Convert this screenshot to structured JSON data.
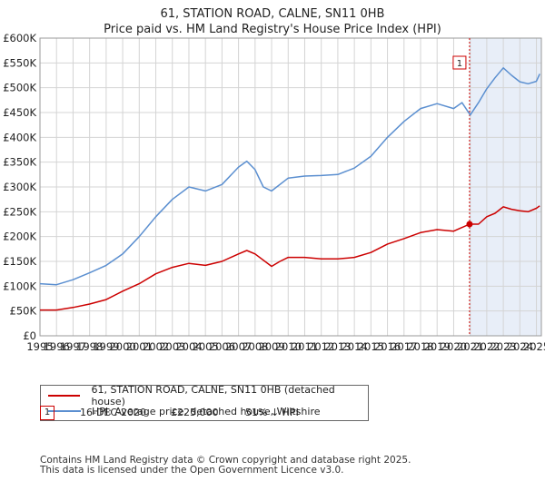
{
  "chart_data": {
    "type": "line",
    "title": "61, STATION ROAD, CALNE, SN11 0HB",
    "subtitle": "Price paid vs. HM Land Registry's House Price Index (HPI)",
    "x_ticks": [
      "1995",
      "1996",
      "1997",
      "1998",
      "1999",
      "2000",
      "2001",
      "2002",
      "2003",
      "2004",
      "2005",
      "2006",
      "2007",
      "2008",
      "2009",
      "2010",
      "2011",
      "2012",
      "2013",
      "2014",
      "2015",
      "2016",
      "2017",
      "2018",
      "2019",
      "2020",
      "2021",
      "2022",
      "2023",
      "2024",
      "2025"
    ],
    "y_ticks": [
      "£0",
      "£50K",
      "£100K",
      "£150K",
      "£200K",
      "£250K",
      "£300K",
      "£350K",
      "£400K",
      "£450K",
      "£500K",
      "£550K",
      "£600K"
    ],
    "xlim": [
      1995,
      2025.3
    ],
    "ylim": [
      0,
      600000
    ],
    "grid": true,
    "highlight_region": {
      "from": 2020.96,
      "to": 2025.3
    },
    "series": [
      {
        "name": "61, STATION ROAD, CALNE, SN11 0HB (detached house)",
        "color": "#cc0000",
        "x": [
          1995,
          1996,
          1997,
          1998,
          1999,
          2000,
          2001,
          2002,
          2003,
          2004,
          2005,
          2006,
          2007,
          2007.5,
          2008,
          2009,
          2009.5,
          2010,
          2011,
          2012,
          2013,
          2014,
          2015,
          2016,
          2017,
          2018,
          2019,
          2020,
          2020.96,
          2021.5,
          2022,
          2022.5,
          2023,
          2023.5,
          2024,
          2024.5,
          2025,
          2025.2
        ],
        "values": [
          52000,
          52000,
          57000,
          64000,
          73000,
          90000,
          105000,
          125000,
          138000,
          146000,
          142000,
          150000,
          165000,
          172000,
          165000,
          140000,
          150000,
          158000,
          158000,
          155000,
          155000,
          158000,
          168000,
          185000,
          196000,
          208000,
          214000,
          211000,
          225000,
          225000,
          240000,
          247000,
          260000,
          255000,
          252000,
          250000,
          257000,
          262000
        ]
      },
      {
        "name": "HPI: Average price, detached house, Wiltshire",
        "color": "#5b8fd0",
        "x": [
          1995,
          1996,
          1997,
          1998,
          1999,
          2000,
          2001,
          2002,
          2003,
          2004,
          2005,
          2006,
          2007,
          2007.5,
          2008,
          2008.5,
          2009,
          2010,
          2011,
          2012,
          2013,
          2014,
          2015,
          2016,
          2017,
          2018,
          2019,
          2020,
          2020.5,
          2021,
          2021.5,
          2022,
          2022.5,
          2023,
          2023.5,
          2024,
          2024.5,
          2025,
          2025.2
        ],
        "values": [
          105000,
          103000,
          113000,
          127000,
          142000,
          165000,
          200000,
          240000,
          275000,
          300000,
          292000,
          305000,
          340000,
          352000,
          335000,
          300000,
          292000,
          318000,
          322000,
          323000,
          325000,
          338000,
          362000,
          400000,
          432000,
          458000,
          468000,
          458000,
          470000,
          445000,
          470000,
          498000,
          520000,
          540000,
          525000,
          512000,
          508000,
          513000,
          528000
        ]
      }
    ],
    "annotation": {
      "label": "1",
      "x": 2020.96,
      "y": 225000
    }
  },
  "legend": {
    "property_label": "61, STATION ROAD, CALNE, SN11 0HB (detached house)",
    "hpi_label": "HPI: Average price, detached house, Wiltshire"
  },
  "sale": {
    "number": "1",
    "date": "16-DEC-2020",
    "price": "£225,000",
    "hpi_diff": "51% ↓ HPI"
  },
  "footer": {
    "line1": "Contains HM Land Registry data © Crown copyright and database right 2025.",
    "line2": "This data is licensed under the Open Government Licence v3.0."
  },
  "colors": {
    "property": "#cc0000",
    "hpi": "#5b8fd0",
    "grid": "#d4d4d4",
    "highlight": "#e8eef8"
  }
}
